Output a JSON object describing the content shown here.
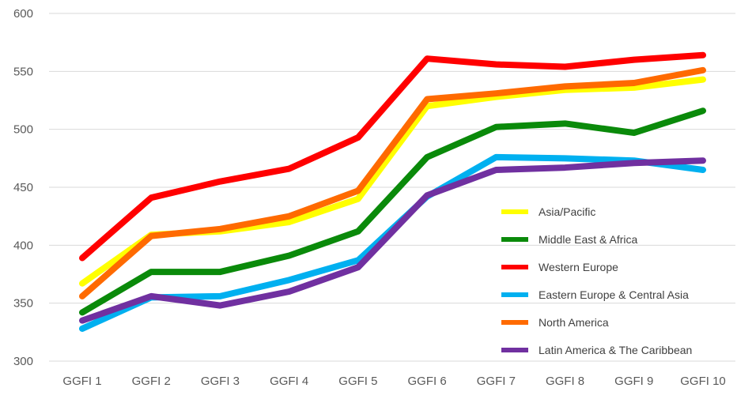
{
  "chart_data": {
    "type": "line",
    "title": "",
    "xlabel": "",
    "ylabel": "",
    "ylim": [
      300,
      600
    ],
    "yticks": [
      300,
      350,
      400,
      450,
      500,
      550,
      600
    ],
    "grid": true,
    "legend_position": "right",
    "categories": [
      "GGFI 1",
      "GGFI 2",
      "GGFI 3",
      "GGFI 4",
      "GGFI 5",
      "GGFI 6",
      "GGFI 7",
      "GGFI 8",
      "GGFI 9",
      "GGFI 10"
    ],
    "series": [
      {
        "name": "Asia/Pacific",
        "color": "#ffff00",
        "values": [
          367,
          409,
          412,
          420,
          440,
          520,
          528,
          534,
          536,
          543
        ]
      },
      {
        "name": "Middle East & Africa",
        "color": "#0a8a0a",
        "values": [
          342,
          377,
          377,
          391,
          412,
          476,
          502,
          505,
          497,
          516
        ]
      },
      {
        "name": "Western Europe",
        "color": "#ff0000",
        "values": [
          389,
          441,
          455,
          466,
          493,
          561,
          556,
          554,
          560,
          564
        ]
      },
      {
        "name": "Eastern Europe & Central Asia",
        "color": "#00b0f0",
        "values": [
          328,
          355,
          356,
          370,
          387,
          442,
          476,
          475,
          473,
          465
        ]
      },
      {
        "name": "North America",
        "color": "#ff6a00",
        "values": [
          356,
          408,
          414,
          425,
          447,
          526,
          531,
          537,
          540,
          551
        ]
      },
      {
        "name": "Latin America & The Caribbean",
        "color": "#7030a0",
        "values": [
          335,
          356,
          348,
          360,
          381,
          443,
          465,
          467,
          471,
          473
        ]
      }
    ]
  }
}
